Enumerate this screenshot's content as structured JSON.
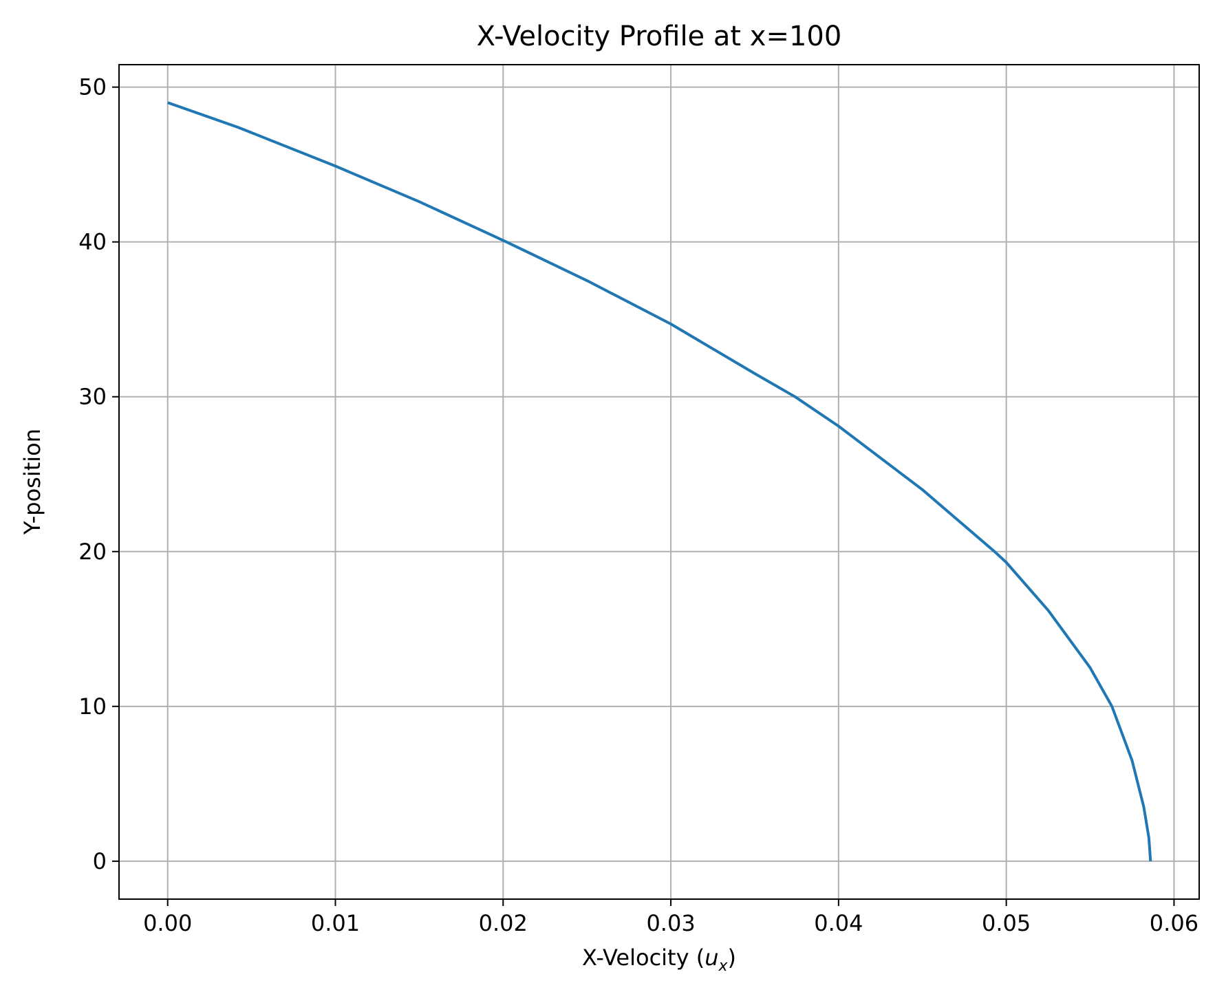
{
  "chart_data": {
    "type": "line",
    "title": "X-Velocity Profile at x=100",
    "xlabel": "X-Velocity (",
    "xlabel_math_base": "u",
    "xlabel_math_sub": "x",
    "xlabel_suffix": ")",
    "ylabel": "Y-position",
    "xlim": [
      -0.0029,
      0.0615
    ],
    "ylim": [
      -2.45,
      51.45
    ],
    "x_ticks": [
      0.0,
      0.01,
      0.02,
      0.03,
      0.04,
      0.05,
      0.06
    ],
    "x_tick_labels": [
      "0.00",
      "0.01",
      "0.02",
      "0.03",
      "0.04",
      "0.05",
      "0.06"
    ],
    "y_ticks": [
      0,
      10,
      20,
      30,
      40,
      50
    ],
    "y_tick_labels": [
      "0",
      "10",
      "20",
      "30",
      "40",
      "50"
    ],
    "grid": true,
    "series": [
      {
        "color": "#1f77b4",
        "points": [
          {
            "x": 0.0,
            "y": 49
          },
          {
            "x": 0.0042,
            "y": 47.4
          },
          {
            "x": 0.01,
            "y": 44.9
          },
          {
            "x": 0.015,
            "y": 42.6
          },
          {
            "x": 0.02,
            "y": 40.1
          },
          {
            "x": 0.025,
            "y": 37.5
          },
          {
            "x": 0.03,
            "y": 34.7
          },
          {
            "x": 0.035,
            "y": 31.5
          },
          {
            "x": 0.0374,
            "y": 30.0
          },
          {
            "x": 0.04,
            "y": 28.1
          },
          {
            "x": 0.045,
            "y": 24.0
          },
          {
            "x": 0.0493,
            "y": 20.0
          },
          {
            "x": 0.05,
            "y": 19.3
          },
          {
            "x": 0.0525,
            "y": 16.2
          },
          {
            "x": 0.055,
            "y": 12.5
          },
          {
            "x": 0.0563,
            "y": 10.0
          },
          {
            "x": 0.0575,
            "y": 6.5
          },
          {
            "x": 0.0582,
            "y": 3.5
          },
          {
            "x": 0.0585,
            "y": 1.5
          },
          {
            "x": 0.0586,
            "y": 0
          }
        ]
      }
    ]
  }
}
